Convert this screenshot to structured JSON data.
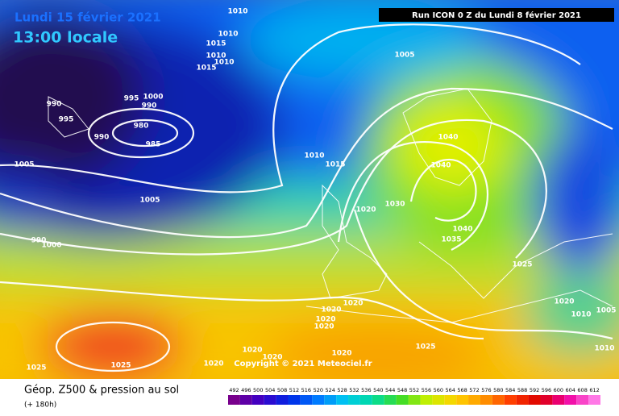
{
  "header": {
    "date": "Lundi 15 février 2021",
    "time": "13:00 locale",
    "run": "Run ICON 0 Z du Lundi 8 février 2021"
  },
  "map": {
    "isobar_labels": [
      1010,
      1010,
      1015,
      1010,
      1010,
      1015,
      1005,
      995,
      1000,
      990,
      990,
      995,
      990,
      980,
      985,
      1005,
      1010,
      1015,
      1005,
      1040,
      1040,
      1030,
      1020,
      1040,
      1035,
      1025,
      990,
      1000,
      1020,
      1020,
      1020,
      1020,
      1020,
      1005,
      1010,
      1025,
      1020,
      1020,
      1020,
      1020,
      1025,
      1025,
      1010
    ],
    "copyright": "Copyright © 2021 Meteociel.fr"
  },
  "footer": {
    "title": "Géop. Z500 & pression au sol",
    "lead": "(+ 180h)"
  },
  "legend": {
    "levels": [
      492,
      496,
      500,
      504,
      508,
      512,
      516,
      520,
      524,
      528,
      532,
      536,
      540,
      544,
      548,
      552,
      556,
      560,
      564,
      568,
      572,
      576,
      580,
      584,
      588,
      592,
      596,
      600,
      604,
      608,
      612
    ]
  }
}
